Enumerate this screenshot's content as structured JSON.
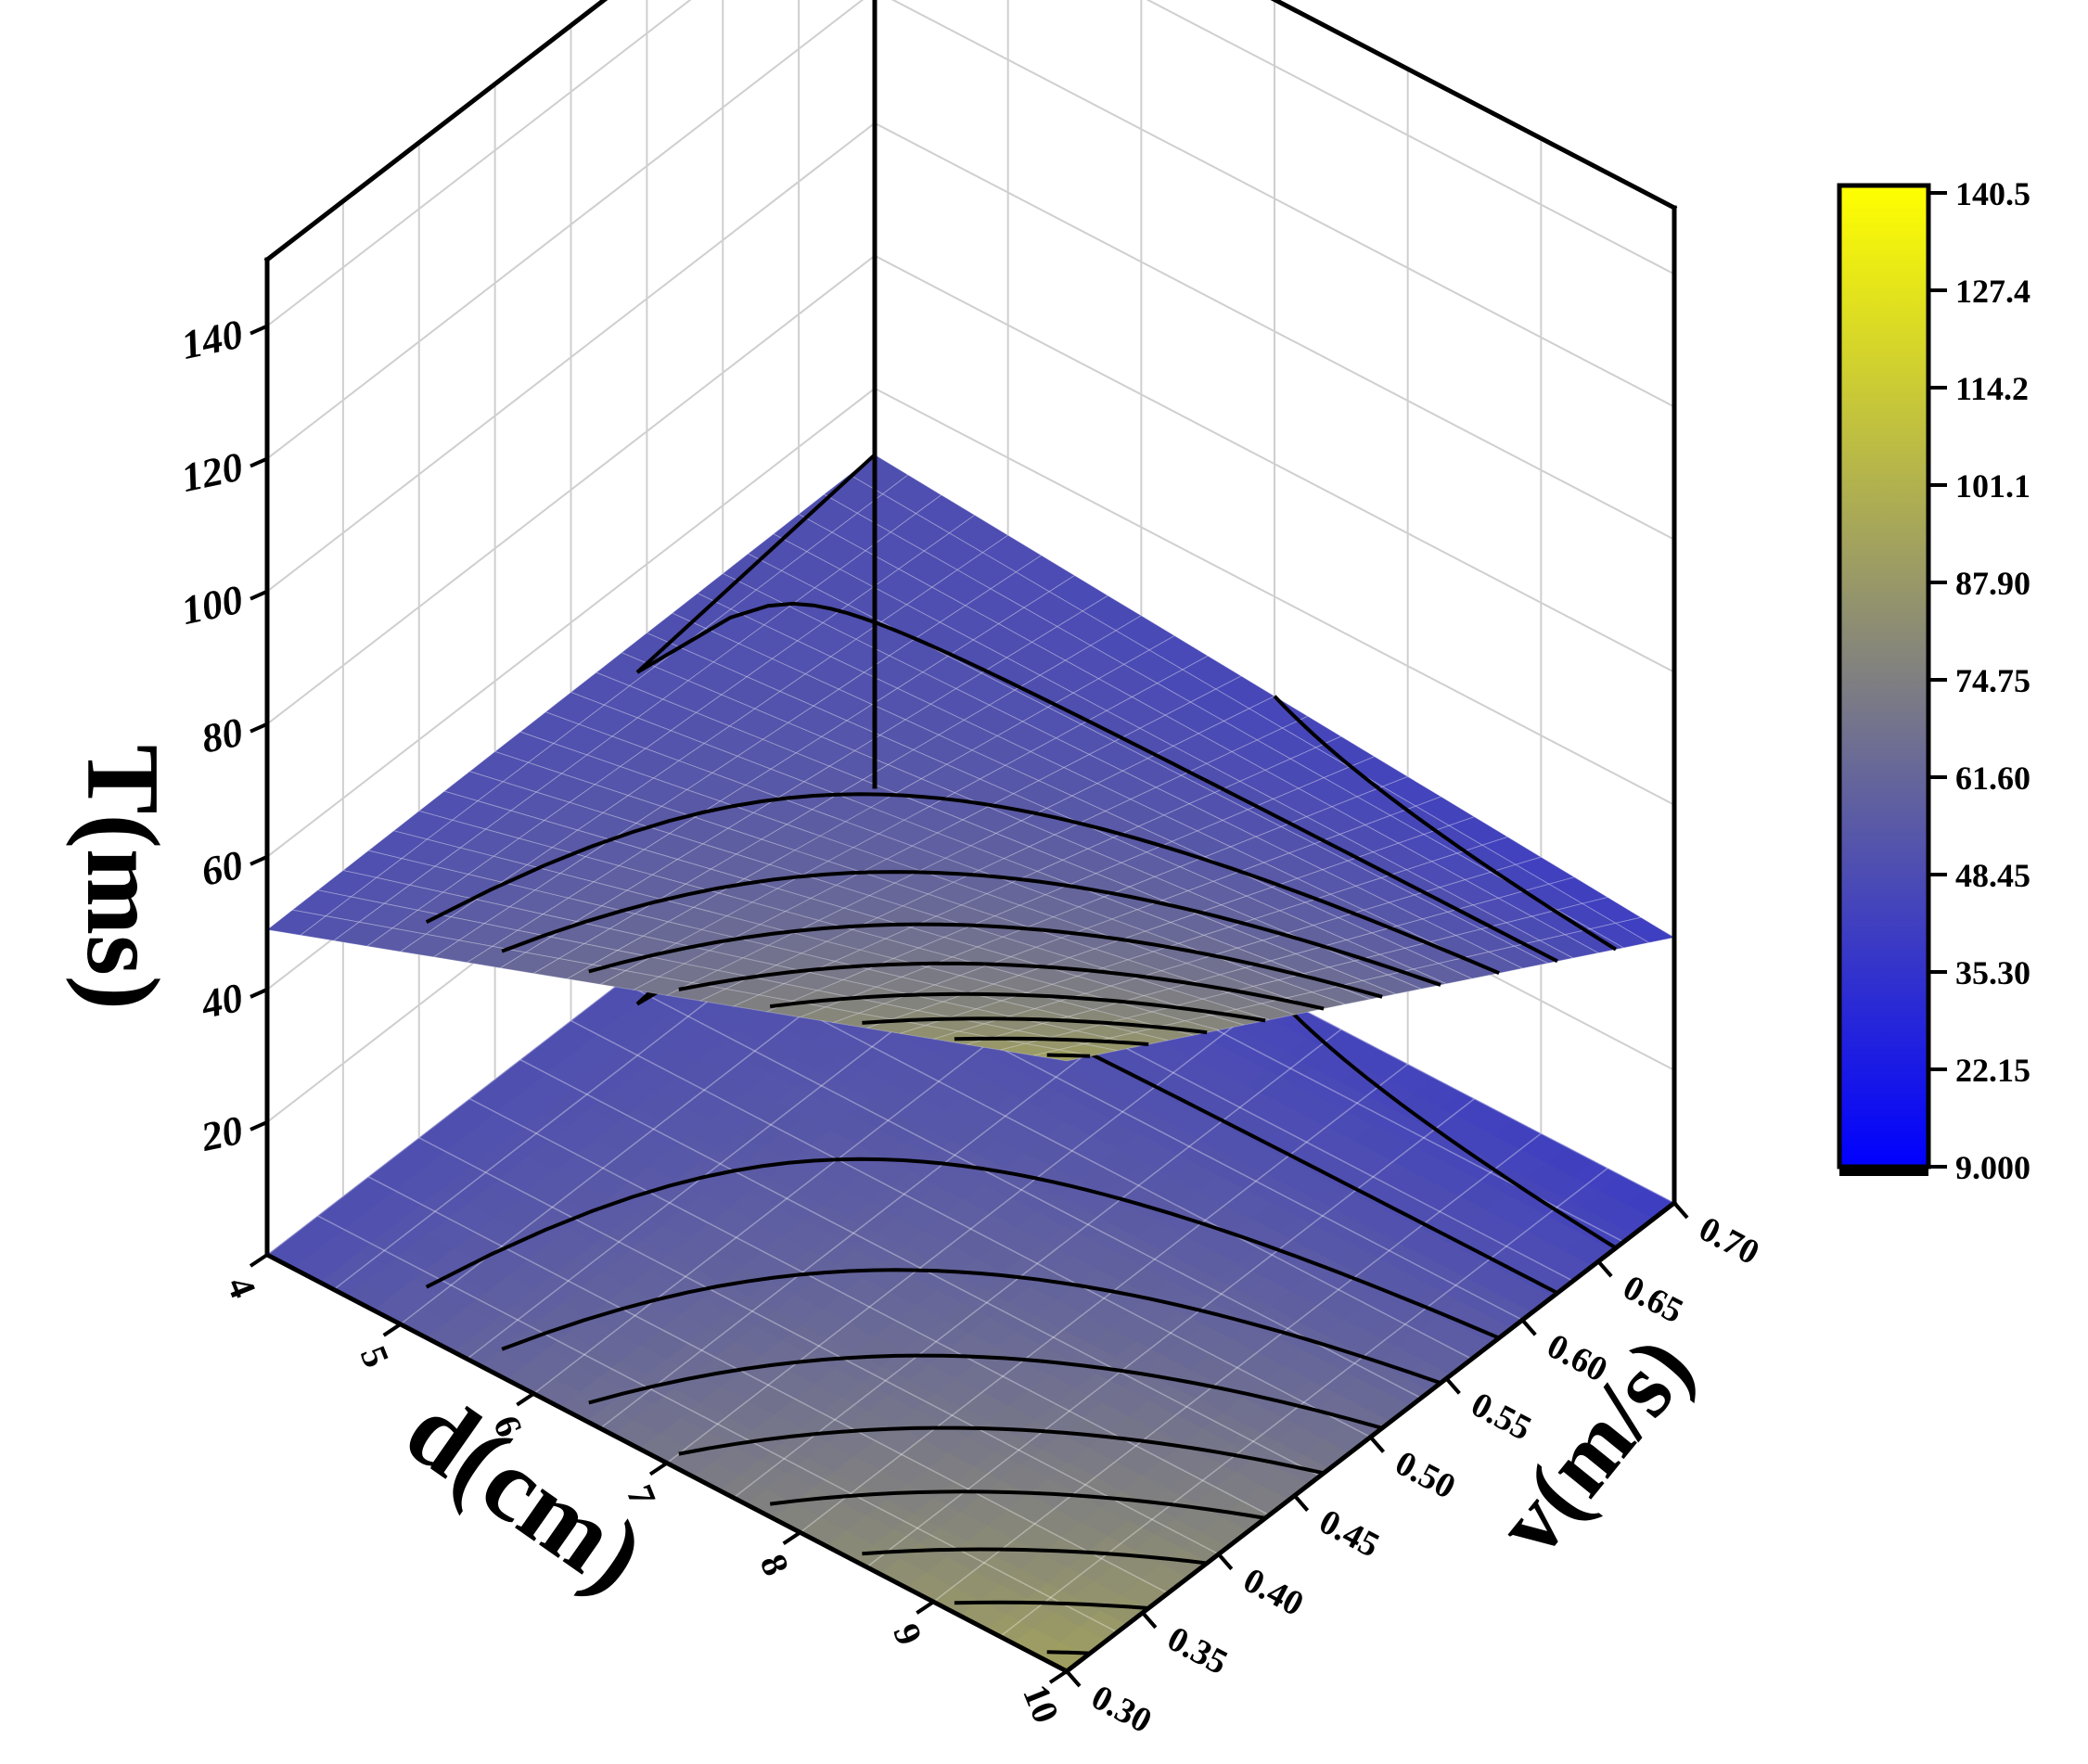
{
  "chart_data": {
    "type": "surface3d",
    "title": "",
    "x_axis": {
      "label": "d(cm)",
      "ticks": [
        "4",
        "5",
        "6",
        "7",
        "8",
        "9",
        "10"
      ],
      "range": [
        4,
        10
      ]
    },
    "y_axis": {
      "label": "v(m/s)",
      "ticks": [
        "0.30",
        "0.35",
        "0.40",
        "0.45",
        "0.50",
        "0.55",
        "0.60",
        "0.65",
        "0.70"
      ],
      "range": [
        0.3,
        0.7
      ]
    },
    "z_axis": {
      "label": "T(ms)",
      "ticks": [
        "20",
        "40",
        "60",
        "80",
        "100",
        "120",
        "140"
      ],
      "range": [
        0,
        150
      ]
    },
    "colorbar": {
      "ticks": [
        "140.5",
        "127.4",
        "114.2",
        "101.1",
        "87.90",
        "74.75",
        "61.60",
        "48.45",
        "35.30",
        "22.15",
        "9.000"
      ],
      "min": 9.0,
      "max": 140.5
    },
    "colors": {
      "low": "#0000ff",
      "mid": "#808080",
      "high": "#ffff00"
    },
    "surface_corners": [
      {
        "d": 4,
        "v": 0.3,
        "T": 49
      },
      {
        "d": 4,
        "v": 0.7,
        "T": 50
      },
      {
        "d": 10,
        "v": 0.3,
        "T": 92
      },
      {
        "d": 10,
        "v": 0.7,
        "T": 40
      }
    ],
    "grid": true,
    "floor_contour_map": true,
    "legend_position": "right"
  }
}
